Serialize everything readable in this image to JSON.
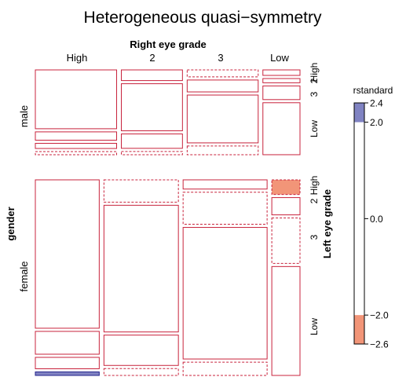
{
  "chart_data": {
    "type": "mosaic",
    "title": "Heterogeneous quasi−symmetry",
    "col_var_label": "Right eye grade",
    "inner_var_label": "Left eye grade",
    "outer_var_label": "gender",
    "col_levels": [
      "High",
      "2",
      "3",
      "Low"
    ],
    "inner_levels": [
      "High",
      "2",
      "3",
      "Low"
    ],
    "outer_levels": [
      "male",
      "female"
    ],
    "counts": {
      "male": [
        [
          821,
          112,
          85,
          35
        ],
        [
          116,
          494,
          145,
          27
        ],
        [
          72,
          151,
          583,
          87
        ],
        [
          43,
          34,
          106,
          331
        ]
      ],
      "female": [
        [
          1520,
          266,
          124,
          66
        ],
        [
          234,
          1512,
          432,
          78
        ],
        [
          117,
          362,
          1772,
          205
        ],
        [
          36,
          82,
          179,
          492
        ]
      ]
    },
    "residuals": {
      "male": [
        [
          0,
          0,
          -1.0,
          0
        ],
        [
          0,
          0,
          0,
          0
        ],
        [
          0,
          0,
          0,
          0
        ],
        [
          -1.0,
          -1.0,
          -1.0,
          0
        ]
      ],
      "female": [
        [
          0,
          -1.0,
          0,
          -2.5
        ],
        [
          0,
          0,
          -1.0,
          0
        ],
        [
          0,
          0,
          0,
          -1.0
        ],
        [
          2.4,
          -1.0,
          -1.0,
          0
        ]
      ]
    },
    "legend": {
      "title": "rstandard",
      "range": [
        -2.6,
        2.4
      ],
      "ticks": [
        "2.4",
        "2.0",
        "0.0",
        "−2.0",
        "−2.6"
      ],
      "tick_values": [
        2.4,
        2.0,
        0.0,
        -2.0,
        -2.6
      ],
      "positive_color": "#8083c2",
      "negative_color": "#f29578",
      "positive_border": "#23238c",
      "negative_border": "#c8233c"
    }
  }
}
